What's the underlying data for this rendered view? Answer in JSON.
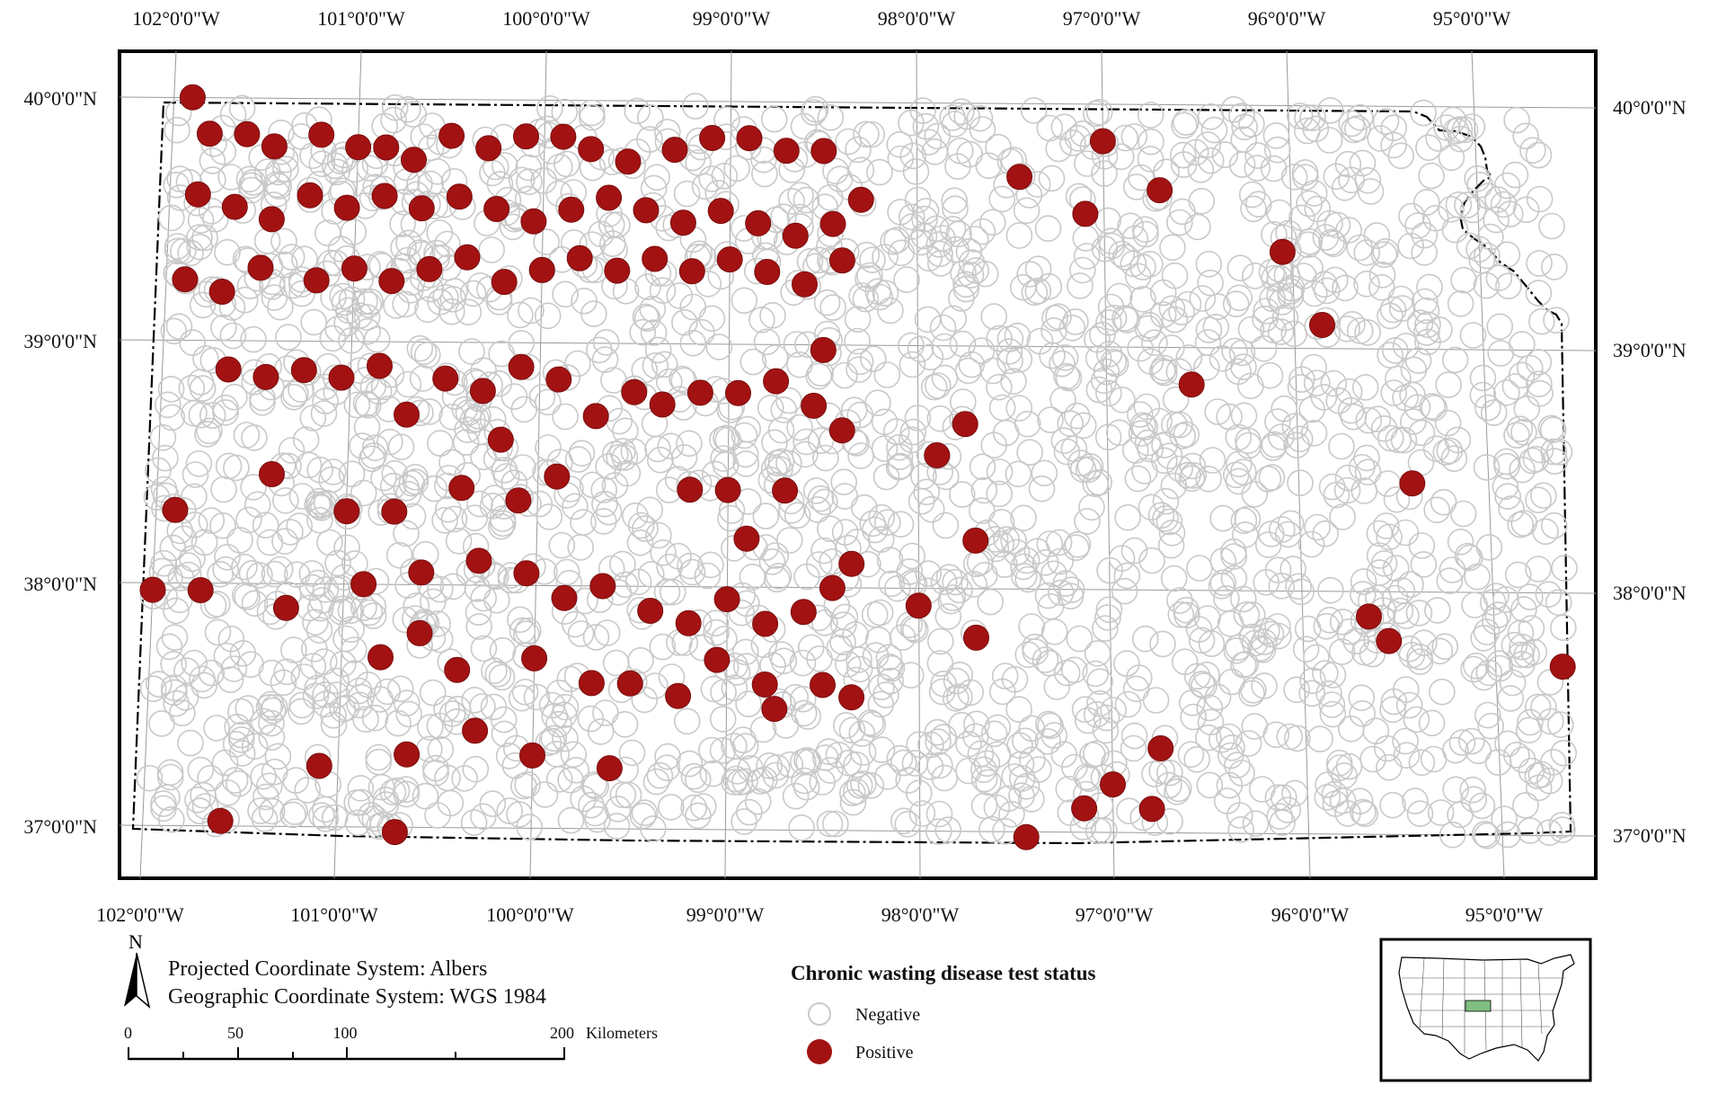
{
  "map": {
    "top_longitude_labels": [
      "102°0'0\"W",
      "101°0'0\"W",
      "100°0'0\"W",
      "99°0'0\"W",
      "98°0'0\"W",
      "97°0'0\"W",
      "96°0'0\"W",
      "95°0'0\"W"
    ],
    "bottom_longitude_labels": [
      "102°0'0\"W",
      "101°0'0\"W",
      "100°0'0\"W",
      "99°0'0\"W",
      "98°0'0\"W",
      "97°0'0\"W",
      "96°0'0\"W",
      "95°0'0\"W"
    ],
    "left_latitude_labels": [
      "40°0'0\"N",
      "39°0'0\"N",
      "38°0'0\"N",
      "37°0'0\"N"
    ],
    "right_latitude_labels": [
      "40°0'0\"N",
      "39°0'0\"N",
      "38°0'0\"N",
      "37°0'0\"N"
    ],
    "colors": {
      "positive": "#a31212",
      "negative": "#c9c9c9",
      "inset_highlight": "#7fbf7f",
      "frame": "#000000"
    },
    "positive_points": [
      [
        -101.9,
        40.0
      ],
      [
        -101.8,
        39.85
      ],
      [
        -101.6,
        39.85
      ],
      [
        -101.45,
        39.8
      ],
      [
        -101.2,
        39.85
      ],
      [
        -101.0,
        39.8
      ],
      [
        -100.85,
        39.8
      ],
      [
        -100.7,
        39.75
      ],
      [
        -100.5,
        39.85
      ],
      [
        -100.3,
        39.8
      ],
      [
        -100.1,
        39.85
      ],
      [
        -99.9,
        39.85
      ],
      [
        -99.75,
        39.8
      ],
      [
        -99.55,
        39.75
      ],
      [
        -99.3,
        39.8
      ],
      [
        -99.1,
        39.85
      ],
      [
        -98.9,
        39.85
      ],
      [
        -98.7,
        39.8
      ],
      [
        -98.5,
        39.8
      ],
      [
        -101.85,
        39.6
      ],
      [
        -101.65,
        39.55
      ],
      [
        -101.45,
        39.5
      ],
      [
        -101.25,
        39.6
      ],
      [
        -101.05,
        39.55
      ],
      [
        -100.85,
        39.6
      ],
      [
        -100.65,
        39.55
      ],
      [
        -100.45,
        39.6
      ],
      [
        -100.25,
        39.55
      ],
      [
        -100.05,
        39.5
      ],
      [
        -99.85,
        39.55
      ],
      [
        -99.65,
        39.6
      ],
      [
        -99.45,
        39.55
      ],
      [
        -99.25,
        39.5
      ],
      [
        -99.05,
        39.55
      ],
      [
        -98.85,
        39.5
      ],
      [
        -98.65,
        39.45
      ],
      [
        -98.45,
        39.5
      ],
      [
        -98.3,
        39.6
      ],
      [
        -101.9,
        39.25
      ],
      [
        -101.7,
        39.2
      ],
      [
        -101.5,
        39.3
      ],
      [
        -101.2,
        39.25
      ],
      [
        -101.0,
        39.3
      ],
      [
        -100.8,
        39.25
      ],
      [
        -100.6,
        39.3
      ],
      [
        -100.4,
        39.35
      ],
      [
        -100.2,
        39.25
      ],
      [
        -100.0,
        39.3
      ],
      [
        -99.8,
        39.35
      ],
      [
        -99.6,
        39.3
      ],
      [
        -99.4,
        39.35
      ],
      [
        -99.2,
        39.3
      ],
      [
        -99.0,
        39.35
      ],
      [
        -98.8,
        39.3
      ],
      [
        -98.6,
        39.25
      ],
      [
        -98.4,
        39.35
      ],
      [
        -101.65,
        38.88
      ],
      [
        -101.45,
        38.85
      ],
      [
        -101.25,
        38.88
      ],
      [
        -101.05,
        38.85
      ],
      [
        -100.85,
        38.9
      ],
      [
        -100.7,
        38.7
      ],
      [
        -100.5,
        38.85
      ],
      [
        -100.3,
        38.8
      ],
      [
        -100.1,
        38.9
      ],
      [
        -100.2,
        38.6
      ],
      [
        -99.9,
        38.85
      ],
      [
        -99.7,
        38.7
      ],
      [
        -99.5,
        38.8
      ],
      [
        -99.35,
        38.75
      ],
      [
        -99.15,
        38.8
      ],
      [
        -98.95,
        38.8
      ],
      [
        -98.75,
        38.85
      ],
      [
        -98.55,
        38.75
      ],
      [
        -98.4,
        38.65
      ],
      [
        -98.5,
        38.98
      ],
      [
        -101.4,
        38.45
      ],
      [
        -101.0,
        38.3
      ],
      [
        -101.9,
        38.3
      ],
      [
        -100.75,
        38.3
      ],
      [
        -100.4,
        38.4
      ],
      [
        -100.1,
        38.35
      ],
      [
        -99.9,
        38.45
      ],
      [
        -99.2,
        38.4
      ],
      [
        -99.0,
        38.4
      ],
      [
        -98.7,
        38.4
      ],
      [
        -98.9,
        38.2
      ],
      [
        -100.9,
        38.0
      ],
      [
        -100.6,
        38.05
      ],
      [
        -100.3,
        38.1
      ],
      [
        -100.05,
        38.05
      ],
      [
        -99.85,
        37.95
      ],
      [
        -99.65,
        38.0
      ],
      [
        -99.4,
        37.9
      ],
      [
        -99.2,
        37.85
      ],
      [
        -99.0,
        37.95
      ],
      [
        -98.8,
        37.85
      ],
      [
        -98.6,
        37.9
      ],
      [
        -98.45,
        38.0
      ],
      [
        -98.35,
        38.1
      ],
      [
        -102.0,
        37.97
      ],
      [
        -101.75,
        37.97
      ],
      [
        -101.3,
        37.9
      ],
      [
        -100.8,
        37.7
      ],
      [
        -100.6,
        37.8
      ],
      [
        -100.4,
        37.65
      ],
      [
        -100.0,
        37.7
      ],
      [
        -99.7,
        37.6
      ],
      [
        -99.5,
        37.6
      ],
      [
        -99.25,
        37.55
      ],
      [
        -99.05,
        37.7
      ],
      [
        -98.8,
        37.6
      ],
      [
        -98.5,
        37.6
      ],
      [
        -98.35,
        37.55
      ],
      [
        -98.75,
        37.5
      ],
      [
        -100.3,
        37.4
      ],
      [
        -100.0,
        37.3
      ],
      [
        -99.6,
        37.25
      ],
      [
        -100.65,
        37.3
      ],
      [
        -101.1,
        37.25
      ],
      [
        -101.6,
        37.02
      ],
      [
        -100.7,
        36.98
      ],
      [
        -98.0,
        37.93
      ],
      [
        -97.7,
        37.8
      ],
      [
        -97.7,
        38.2
      ],
      [
        -97.9,
        38.55
      ],
      [
        -97.75,
        38.68
      ],
      [
        -96.55,
        38.85
      ],
      [
        -95.85,
        39.1
      ],
      [
        -96.05,
        39.4
      ],
      [
        -97.45,
        39.7
      ],
      [
        -97.1,
        39.55
      ],
      [
        -97.0,
        39.85
      ],
      [
        -96.7,
        39.65
      ],
      [
        -95.4,
        38.45
      ],
      [
        -95.65,
        37.9
      ],
      [
        -95.55,
        37.8
      ],
      [
        -94.65,
        37.7
      ],
      [
        -96.75,
        37.35
      ],
      [
        -97.0,
        37.2
      ],
      [
        -96.8,
        37.1
      ],
      [
        -97.15,
        37.1
      ],
      [
        -97.45,
        36.98
      ]
    ],
    "negative_points": [
      [
        -97.4,
        39.3
      ],
      [
        -97.1,
        39.45
      ],
      [
        -96.8,
        39.2
      ],
      [
        -96.5,
        39.5
      ],
      [
        -96.2,
        39.3
      ],
      [
        -95.9,
        39.6
      ],
      [
        -95.6,
        39.4
      ],
      [
        -95.3,
        39.2
      ],
      [
        -95.1,
        39.6
      ],
      [
        -97.6,
        38.9
      ],
      [
        -97.3,
        38.7
      ],
      [
        -97.0,
        38.9
      ],
      [
        -96.7,
        38.6
      ],
      [
        -96.4,
        38.3
      ],
      [
        -96.1,
        38.7
      ],
      [
        -95.8,
        38.4
      ],
      [
        -95.5,
        38.1
      ],
      [
        -95.2,
        38.7
      ],
      [
        -94.9,
        38.4
      ],
      [
        -97.5,
        38.2
      ],
      [
        -97.2,
        38.0
      ],
      [
        -96.9,
        38.3
      ],
      [
        -96.6,
        37.9
      ],
      [
        -96.3,
        37.7
      ],
      [
        -96.0,
        38.0
      ],
      [
        -95.7,
        37.5
      ],
      [
        -95.4,
        37.3
      ],
      [
        -95.1,
        37.7
      ],
      [
        -94.8,
        37.2
      ],
      [
        -97.3,
        37.4
      ],
      [
        -97.6,
        37.1
      ],
      [
        -96.5,
        37.2
      ],
      [
        -96.1,
        37.1
      ],
      [
        -98.2,
        37.9
      ],
      [
        -98.1,
        38.5
      ],
      [
        -98.2,
        39.2
      ],
      [
        -97.8,
        39.6
      ],
      [
        -101.5,
        38.6
      ],
      [
        -101.8,
        38.1
      ],
      [
        -101.6,
        37.7
      ],
      [
        -101.2,
        37.5
      ],
      [
        -101.5,
        37.3
      ],
      [
        -100.9,
        37.1
      ],
      [
        -100.2,
        37.1
      ],
      [
        -99.8,
        37.2
      ],
      [
        -99.3,
        37.3
      ],
      [
        -98.9,
        37.2
      ],
      [
        -98.5,
        37.2
      ],
      [
        -98.1,
        37.3
      ],
      [
        -97.9,
        37.0
      ],
      [
        -94.8,
        38.9
      ],
      [
        -94.9,
        39.3
      ],
      [
        -95.4,
        39.8
      ],
      [
        -95.9,
        39.9
      ],
      [
        -96.4,
        39.9
      ]
    ]
  },
  "projection": {
    "line1": "Projected Coordinate System: Albers",
    "line2": "Geographic Coordinate System: WGS 1984",
    "north": "N"
  },
  "scale_bar": {
    "ticks": [
      "0",
      "50",
      "100",
      "200"
    ],
    "unit": "Kilometers"
  },
  "legend": {
    "title": "Chronic wasting disease test status",
    "items": [
      "Negative",
      "Positive"
    ]
  },
  "inset": {
    "highlight_state_color": "#7fbf7f"
  }
}
